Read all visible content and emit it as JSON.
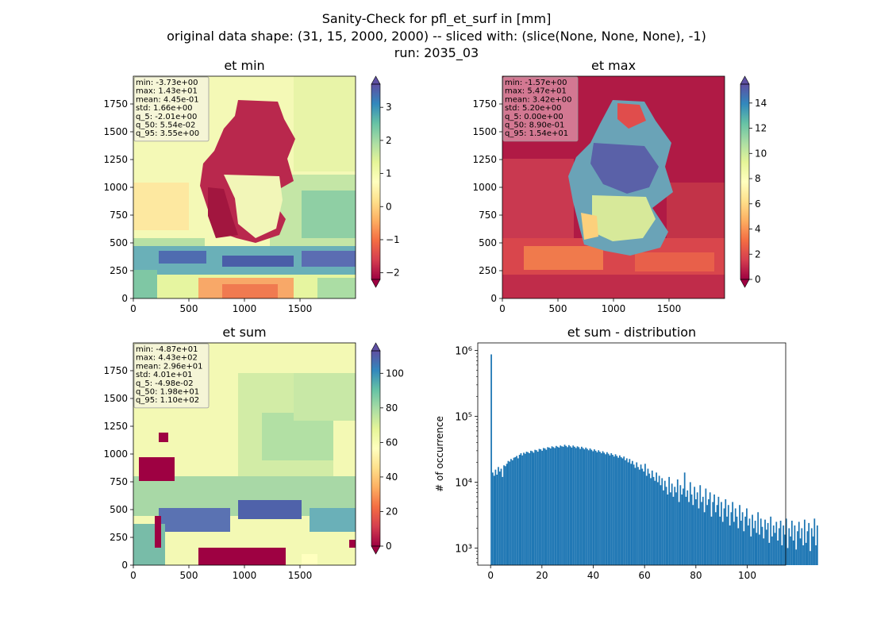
{
  "figure": {
    "title_lines": [
      "Sanity-Check for pfl_et_surf in [mm]",
      "original data shape: (31, 15, 2000, 2000) -- sliced with: (slice(None, None, None), -1)",
      "run: 2035_03"
    ]
  },
  "chart_data": [
    {
      "type": "heatmap",
      "title": "et min",
      "xlim": [
        0,
        2000
      ],
      "ylim": [
        0,
        2000
      ],
      "x_ticks": [
        "0",
        "500",
        "1000",
        "1500"
      ],
      "y_ticks": [
        "0",
        "250",
        "500",
        "750",
        "1000",
        "1250",
        "1500",
        "1750"
      ],
      "colormap": "Spectral",
      "colorbar": {
        "range": [
          -2.2,
          3.7
        ],
        "ticks": [
          "−2",
          "−1",
          "0",
          "1",
          "2",
          "3"
        ],
        "tick_values": [
          -2,
          -1,
          0,
          1,
          2,
          3
        ],
        "extend": "both"
      },
      "stats": [
        "min: -3.73e+00",
        "max: 1.43e+01",
        "mean: 4.45e-01",
        "std: 1.66e+00",
        "q_5: -2.01e+00",
        "q_50: 5.54e-02",
        "q_95: 3.55e+00"
      ],
      "stats_box_color": "#f4f4dc"
    },
    {
      "type": "heatmap",
      "title": "et max",
      "xlim": [
        0,
        2000
      ],
      "ylim": [
        0,
        2000
      ],
      "x_ticks": [
        "0",
        "500",
        "1000",
        "1500"
      ],
      "y_ticks": [
        "0",
        "250",
        "500",
        "750",
        "1000",
        "1250",
        "1500",
        "1750"
      ],
      "colormap": "Spectral",
      "colorbar": {
        "range": [
          0,
          15.5
        ],
        "ticks": [
          "0",
          "2",
          "4",
          "6",
          "8",
          "10",
          "12",
          "14"
        ],
        "tick_values": [
          0,
          2,
          4,
          6,
          8,
          10,
          12,
          14
        ],
        "extend": "both"
      },
      "stats": [
        "min: -1.57e+00",
        "max: 5.47e+01",
        "mean: 3.42e+00",
        "std: 5.20e+00",
        "q_5: 0.00e+00",
        "q_50: 8.90e-01",
        "q_95: 1.54e+01"
      ],
      "stats_box_color": "#d98aa0"
    },
    {
      "type": "heatmap",
      "title": "et sum",
      "xlim": [
        0,
        2000
      ],
      "ylim": [
        0,
        2000
      ],
      "x_ticks": [
        "0",
        "500",
        "1000",
        "1500"
      ],
      "y_ticks": [
        "0",
        "250",
        "500",
        "750",
        "1000",
        "1250",
        "1500",
        "1750"
      ],
      "colormap": "Spectral",
      "colorbar": {
        "range": [
          0,
          113
        ],
        "ticks": [
          "0",
          "20",
          "40",
          "60",
          "80",
          "100"
        ],
        "tick_values": [
          0,
          20,
          40,
          60,
          80,
          100
        ],
        "extend": "both"
      },
      "stats": [
        "min: -4.87e+01",
        "max: 4.43e+02",
        "mean: 2.96e+01",
        "std: 4.01e+01",
        "q_5: -4.98e-02",
        "q_50: 1.98e+01",
        "q_95: 1.10e+02"
      ],
      "stats_box_color": "#f4f4dc"
    },
    {
      "type": "bar",
      "title": "et sum - distribution",
      "ylabel": "# of occurrence",
      "xlabel": "",
      "yscale": "log",
      "xlim": [
        -5,
        115
      ],
      "ylim": [
        550,
        1300000
      ],
      "x_ticks": [
        0,
        20,
        40,
        60,
        80,
        100
      ],
      "y_ticks": [
        {
          "value": 1000,
          "label": "10³"
        },
        {
          "value": 10000,
          "label": "10⁴"
        },
        {
          "value": 100000,
          "label": "10⁵"
        },
        {
          "value": 1000000,
          "label": "10⁶"
        }
      ],
      "bar_color": "#1f77b4",
      "bin_start": 0,
      "bin_width": 0.55,
      "values": [
        870000,
        14000,
        12500,
        15500,
        13000,
        17000,
        14500,
        16000,
        12000,
        18000,
        17500,
        19000,
        21000,
        20500,
        22500,
        21500,
        23500,
        24000,
        25000,
        23000,
        26000,
        27500,
        25500,
        28000,
        27000,
        29000,
        28500,
        27500,
        30000,
        29500,
        28000,
        31000,
        30500,
        29000,
        32000,
        31500,
        30000,
        33000,
        32500,
        31000,
        34000,
        33500,
        32500,
        35000,
        34000,
        33000,
        35500,
        34500,
        33500,
        36000,
        35000,
        34500,
        37000,
        35500,
        34000,
        36500,
        35000,
        33500,
        36000,
        34500,
        33000,
        35000,
        34000,
        32000,
        34500,
        33000,
        31500,
        33500,
        32000,
        30500,
        32500,
        31000,
        29500,
        31500,
        30000,
        28500,
        30500,
        29000,
        27500,
        29500,
        28000,
        26500,
        28500,
        27000,
        25500,
        27500,
        26000,
        24500,
        26500,
        25000,
        23500,
        25500,
        24000,
        23000,
        24500,
        21500,
        23000,
        20000,
        22500,
        19000,
        21000,
        18500,
        16500,
        20000,
        17000,
        15500,
        18500,
        16000,
        14500,
        19000,
        12500,
        16000,
        13500,
        11500,
        15000,
        12000,
        10500,
        14000,
        10000,
        12500,
        9000,
        11500,
        7500,
        10500,
        8500,
        6500,
        12000,
        7000,
        9500,
        6000,
        8500,
        7000,
        11000,
        5000,
        9000,
        6500,
        8000,
        14000,
        6000,
        7500,
        5000,
        10000,
        6500,
        4500,
        8500,
        5500,
        7000,
        4000,
        9000,
        5000,
        6000,
        3500,
        8000,
        4500,
        5500,
        7000,
        3000,
        5000,
        6500,
        3500,
        4500,
        6000,
        3000,
        5000,
        2500,
        4000,
        5500,
        3000,
        4500,
        2200,
        3500,
        5000,
        2500,
        4000,
        3000,
        2000,
        4500,
        2600,
        3500,
        1800,
        3000,
        4000,
        2200,
        2800,
        1500,
        3200,
        2000,
        2600,
        1700,
        3500,
        1600,
        2800,
        2100,
        1400,
        2700,
        1900,
        2400,
        1200,
        3000,
        1500,
        2200,
        1700,
        2500,
        1300,
        2000,
        2600,
        1100,
        2200,
        1600,
        2800,
        1000,
        2000,
        1500,
        2600,
        1300,
        2200,
        950,
        1800,
        2500,
        1400,
        2000,
        1100,
        2700,
        1200,
        1800,
        2400,
        900,
        2000,
        1500,
        2800,
        1100,
        2200
      ]
    }
  ]
}
